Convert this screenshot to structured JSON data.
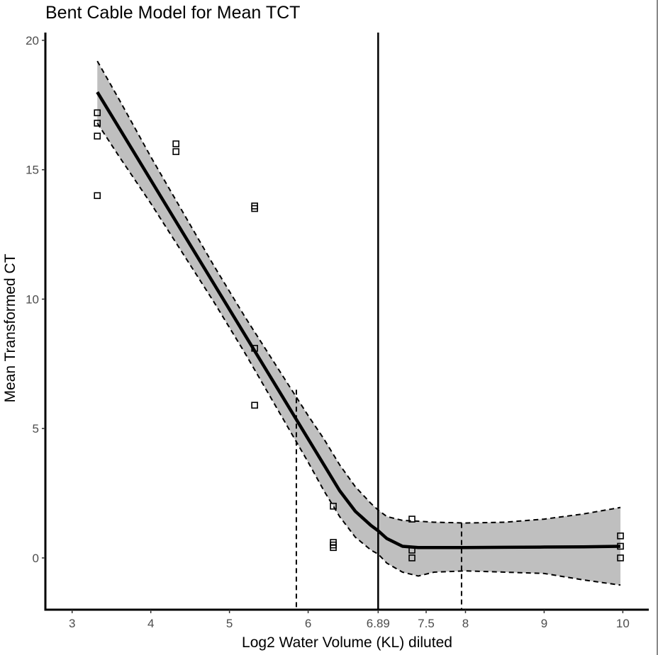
{
  "chart_data": {
    "type": "scatter",
    "title": "Bent Cable Model for Mean TCT",
    "xlabel": "Log2 Water Volume (KL) diluted",
    "ylabel": "Mean Transformed CT",
    "xlim": [
      2.66,
      10.33
    ],
    "ylim": [
      -2.0,
      20.3
    ],
    "x_ticks": [
      3,
      4,
      5,
      6,
      6.89,
      7.5,
      8,
      9,
      10
    ],
    "x_tick_labels": [
      "3",
      "4",
      "5",
      "6",
      "6.89",
      "7.5",
      "8",
      "9",
      "10"
    ],
    "y_ticks": [
      0,
      5,
      10,
      15,
      20
    ],
    "y_tick_labels": [
      "0",
      "5",
      "10",
      "15",
      "20"
    ],
    "grid": false,
    "points": [
      {
        "x": 3.32,
        "y": 17.2
      },
      {
        "x": 3.32,
        "y": 16.8
      },
      {
        "x": 3.32,
        "y": 16.3
      },
      {
        "x": 3.32,
        "y": 14.0
      },
      {
        "x": 4.32,
        "y": 16.0
      },
      {
        "x": 4.32,
        "y": 15.7
      },
      {
        "x": 5.32,
        "y": 13.6
      },
      {
        "x": 5.32,
        "y": 13.5
      },
      {
        "x": 5.32,
        "y": 8.1
      },
      {
        "x": 5.32,
        "y": 5.9
      },
      {
        "x": 6.32,
        "y": 2.0
      },
      {
        "x": 6.32,
        "y": 0.6
      },
      {
        "x": 6.32,
        "y": 0.5
      },
      {
        "x": 6.32,
        "y": 0.4
      },
      {
        "x": 7.32,
        "y": 1.5
      },
      {
        "x": 7.32,
        "y": 0.3
      },
      {
        "x": 7.32,
        "y": 0.0
      },
      {
        "x": 9.97,
        "y": 0.85
      },
      {
        "x": 9.97,
        "y": 0.45
      },
      {
        "x": 9.97,
        "y": 0.0
      }
    ],
    "fit_line": {
      "x": [
        3.32,
        3.6,
        4.0,
        4.4,
        4.8,
        5.2,
        5.6,
        6.0,
        6.2,
        6.4,
        6.6,
        6.8,
        6.89,
        7.0,
        7.2,
        7.4,
        7.6,
        8.0,
        8.5,
        9.0,
        9.5,
        9.97
      ],
      "y": [
        18.0,
        16.6,
        14.6,
        12.6,
        10.6,
        8.6,
        6.6,
        4.6,
        3.6,
        2.6,
        1.8,
        1.25,
        1.05,
        0.75,
        0.45,
        0.4,
        0.4,
        0.4,
        0.41,
        0.42,
        0.43,
        0.45
      ]
    },
    "confidence_band": {
      "x": [
        3.32,
        3.6,
        4.0,
        4.4,
        4.8,
        5.2,
        5.6,
        6.0,
        6.2,
        6.4,
        6.6,
        6.8,
        6.89,
        7.0,
        7.2,
        7.4,
        7.6,
        8.0,
        8.5,
        9.0,
        9.5,
        9.97
      ],
      "upper": [
        19.2,
        17.7,
        15.5,
        13.4,
        11.3,
        9.3,
        7.4,
        5.5,
        4.6,
        3.6,
        2.75,
        2.1,
        1.85,
        1.6,
        1.45,
        1.42,
        1.38,
        1.35,
        1.38,
        1.5,
        1.7,
        1.95
      ],
      "lower": [
        16.8,
        15.5,
        13.7,
        11.8,
        9.9,
        7.9,
        5.8,
        3.7,
        2.6,
        1.6,
        0.8,
        0.3,
        0.15,
        -0.2,
        -0.55,
        -0.7,
        -0.55,
        -0.5,
        -0.55,
        -0.6,
        -0.85,
        -1.05
      ]
    },
    "vlines": [
      {
        "x": 6.89,
        "style": "solid"
      },
      {
        "x": 5.85,
        "style": "dashed",
        "to_y": 6.5
      },
      {
        "x": 7.95,
        "style": "dashed",
        "to_y": 1.35
      }
    ]
  }
}
